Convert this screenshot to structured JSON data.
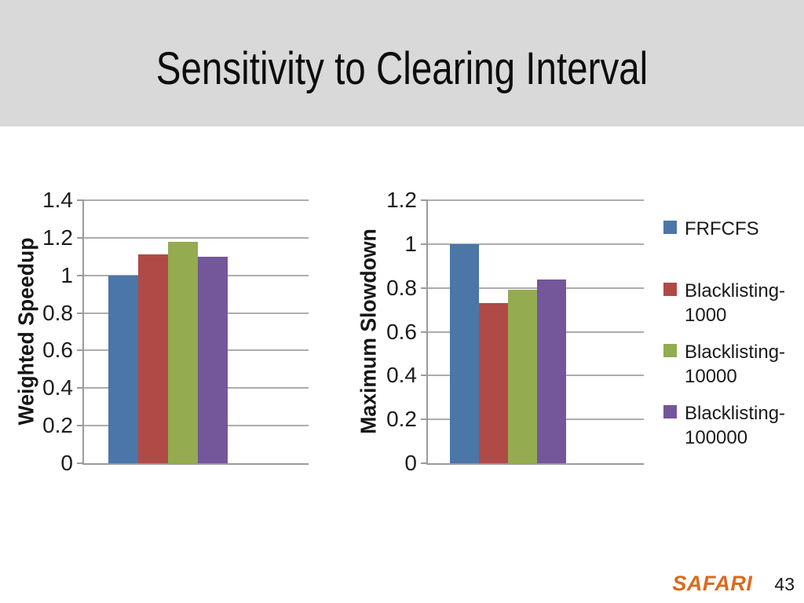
{
  "slide": {
    "title": "Sensitivity to Clearing Interval",
    "logo_text": "SAFARI",
    "page_number": "43"
  },
  "colors": {
    "header_bg": "#D9D9D9",
    "slide_bg": "#FFFFFF",
    "logo_orange": "#D96B1E",
    "gridline": "#ADADAD",
    "axis_line": "#9B9B9B",
    "series": [
      "#4A76A8",
      "#B04A47",
      "#94AB4F",
      "#74569B"
    ]
  },
  "legend": {
    "position": "right",
    "entries": [
      {
        "label": "FRFCFS",
        "color": "#4A76A8",
        "swatch": "blue-square"
      },
      {
        "label": "Blacklisting-1000",
        "color": "#B04A47",
        "swatch": "red-square"
      },
      {
        "label": "Blacklisting-10000",
        "color": "#94AB4F",
        "swatch": "green-square"
      },
      {
        "label": "Blacklisting-100000",
        "color": "#74569B",
        "swatch": "purple-square"
      }
    ]
  },
  "chart_data": [
    {
      "type": "bar",
      "title": "",
      "xlabel": "",
      "ylabel": "Weighted Speedup",
      "ylim": [
        0,
        1.4
      ],
      "yticks": [
        0,
        0.2,
        0.4,
        0.6,
        0.8,
        1,
        1.2,
        1.4
      ],
      "grid": true,
      "legend_position": "none",
      "categories": [
        "FRFCFS",
        "Blacklisting-1000",
        "Blacklisting-10000",
        "Blacklisting-100000"
      ],
      "values": [
        1.0,
        1.11,
        1.18,
        1.1
      ]
    },
    {
      "type": "bar",
      "title": "",
      "xlabel": "",
      "ylabel": "Maximum Slowdown",
      "ylim": [
        0,
        1.2
      ],
      "yticks": [
        0,
        0.2,
        0.4,
        0.6,
        0.8,
        1,
        1.2
      ],
      "grid": true,
      "legend_position": "none",
      "categories": [
        "FRFCFS",
        "Blacklisting-1000",
        "Blacklisting-10000",
        "Blacklisting-100000"
      ],
      "values": [
        1.0,
        0.73,
        0.79,
        0.84
      ]
    }
  ]
}
